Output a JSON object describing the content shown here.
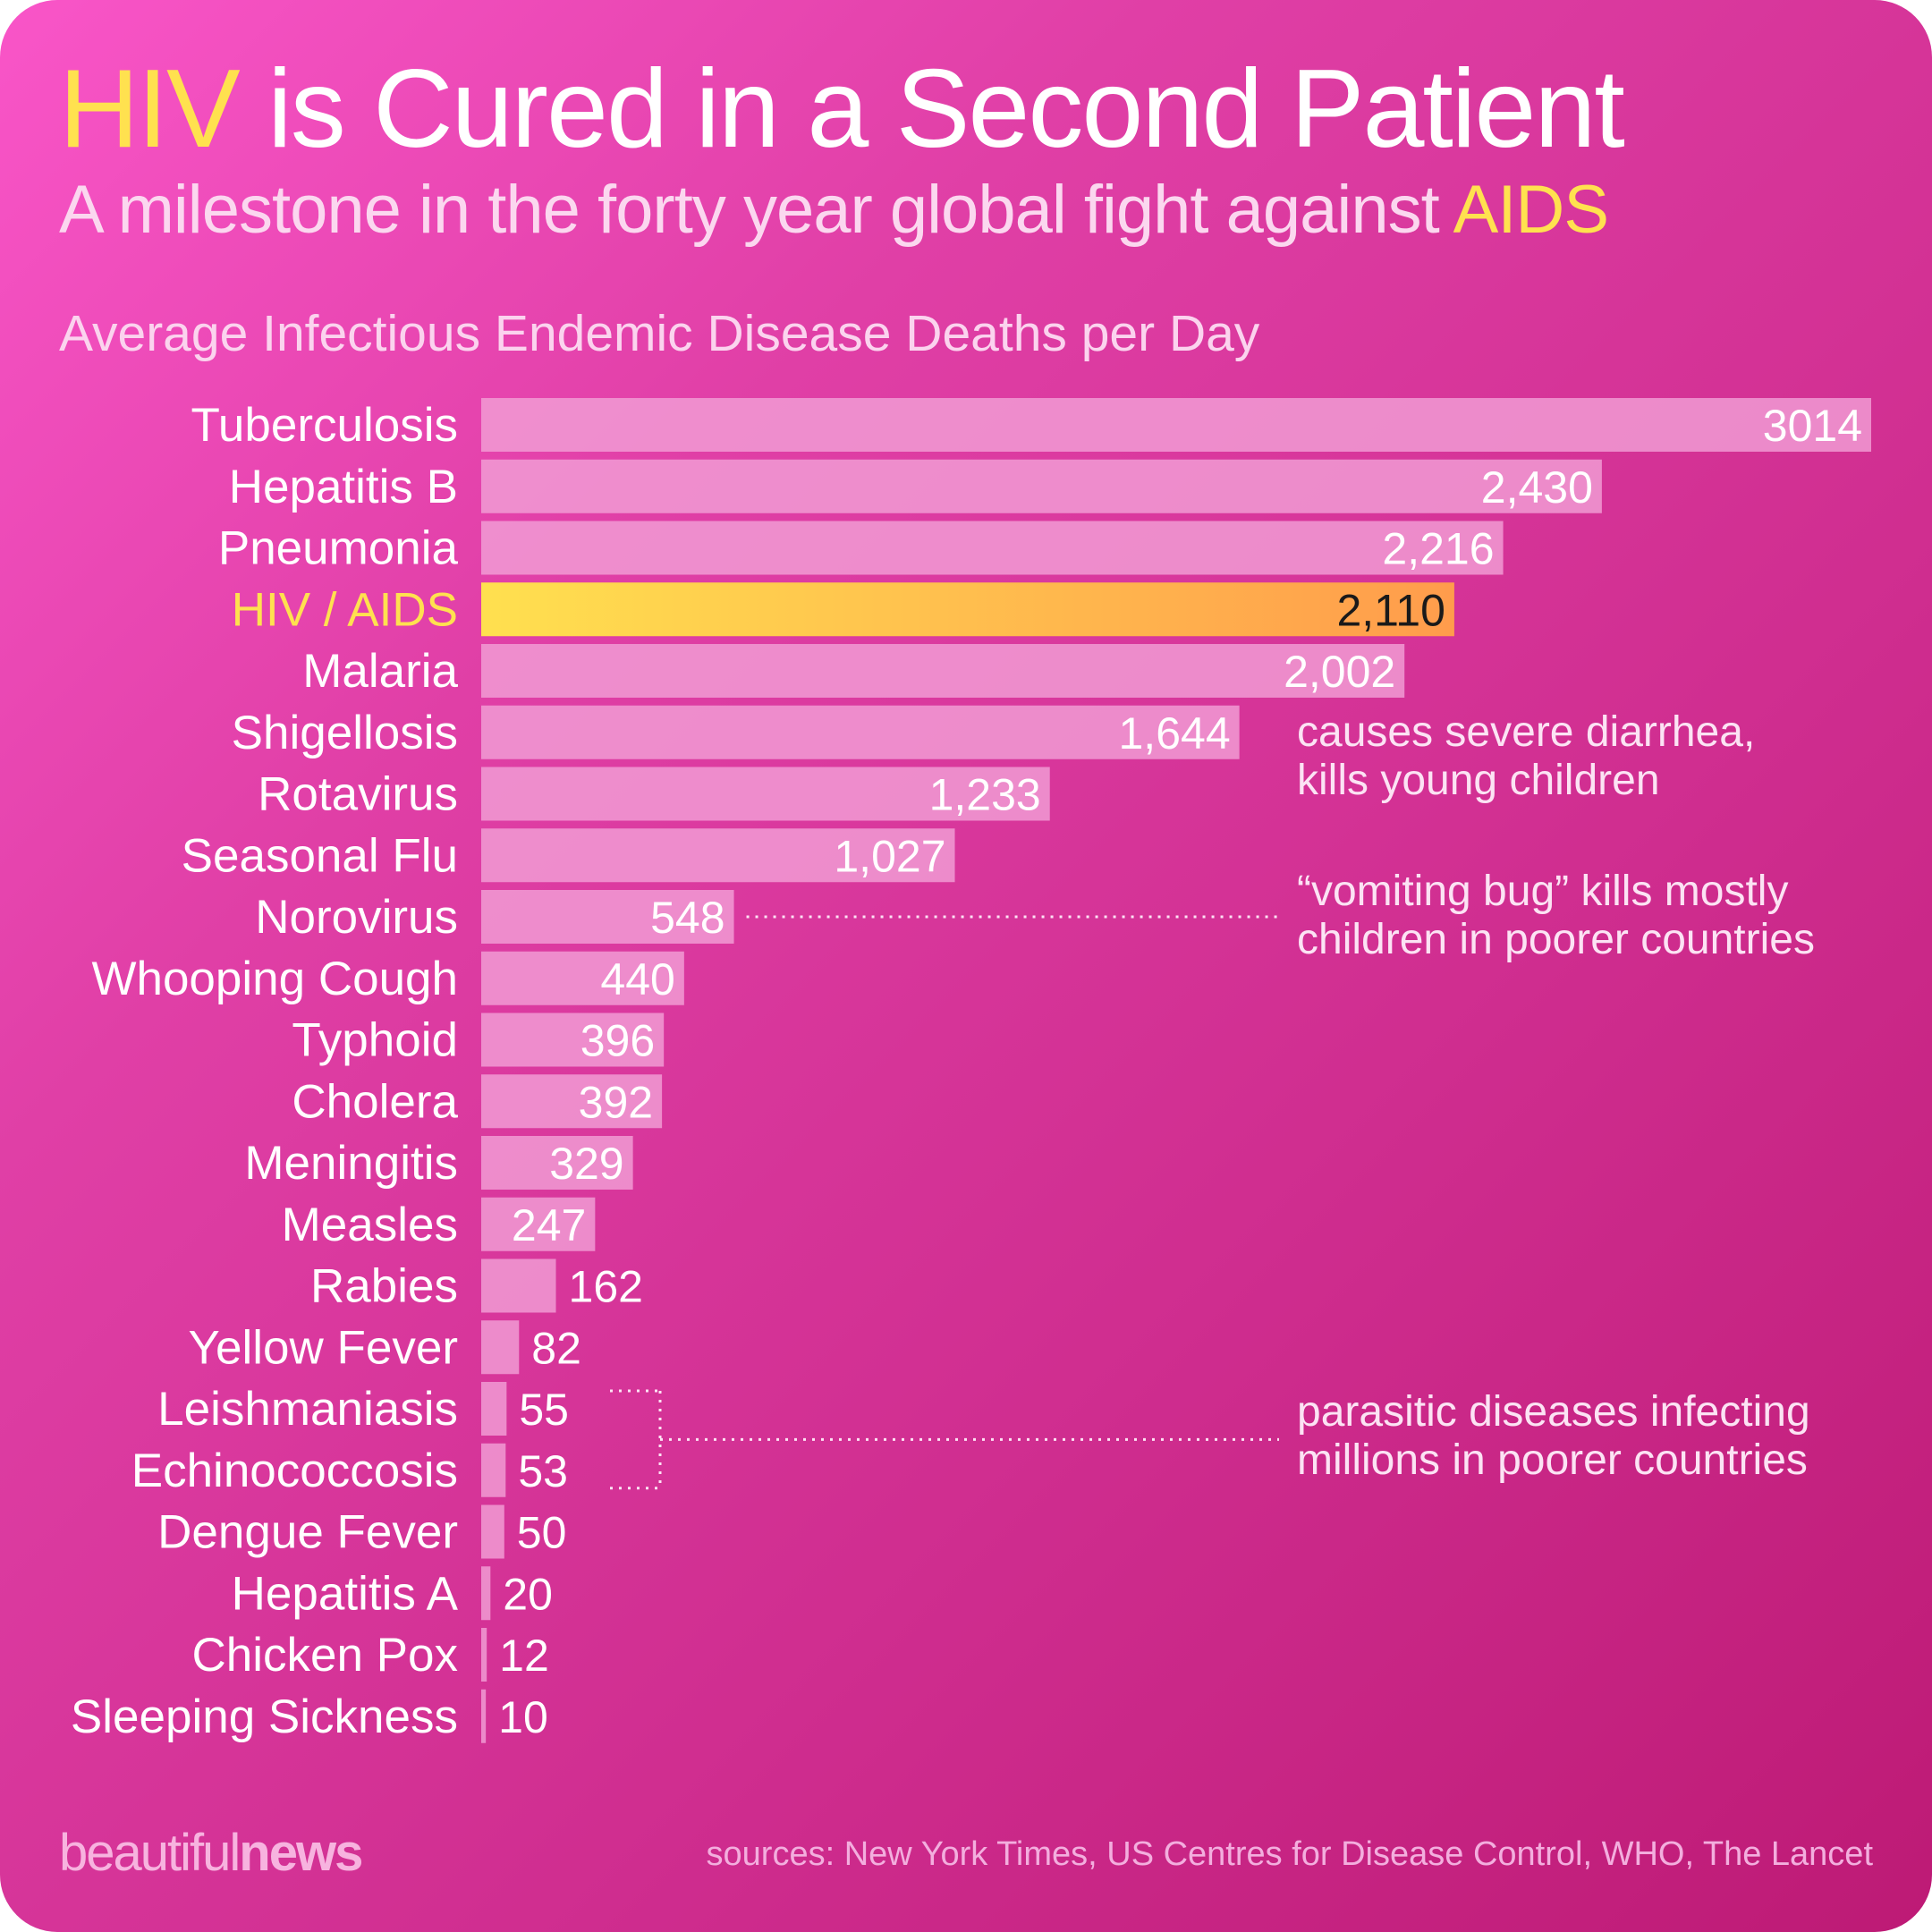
{
  "title": {
    "highlight": "HIV",
    "rest": " is Cured in a Second Patient"
  },
  "subtitle": {
    "text": "A milestone in the forty year global fight against ",
    "highlight": "AIDS"
  },
  "colors": {
    "bar": "#f29fd6",
    "highlight_bar_start": "#ffe04f",
    "highlight_bar_end": "#ff9c4c",
    "highlight_text": "#ffe14f",
    "background_start": "#f955c8",
    "background_end": "#bd1a75"
  },
  "chart_data": {
    "type": "bar",
    "orientation": "horizontal",
    "title": "Average Infectious Endemic Disease Deaths per Day",
    "categories": [
      "Tuberculosis",
      "Hepatitis B",
      "Pneumonia",
      "HIV / AIDS",
      "Malaria",
      "Shigellosis",
      "Rotavirus",
      "Seasonal Flu",
      "Norovirus",
      "Whooping Cough",
      "Typhoid",
      "Cholera",
      "Meningitis",
      "Measles",
      "Rabies",
      "Yellow Fever",
      "Leishmaniasis",
      "Echinococcosis",
      "Dengue Fever",
      "Hepatitis A",
      "Chicken Pox",
      "Sleeping Sickness"
    ],
    "values": [
      3014,
      2430,
      2216,
      2110,
      2002,
      1644,
      1233,
      1027,
      548,
      440,
      396,
      392,
      329,
      247,
      162,
      82,
      55,
      53,
      50,
      20,
      12,
      10
    ],
    "value_labels": [
      "3014",
      "2,430",
      "2,216",
      "2,110",
      "2,002",
      "1,644",
      "1,233",
      "1,027",
      "548",
      "440",
      "396",
      "392",
      "329",
      "247",
      "162",
      "82",
      "55",
      "53",
      "50",
      "20",
      "12",
      "10"
    ],
    "highlight_index": 3,
    "xlim": [
      0,
      3014
    ],
    "xlabel": "",
    "ylabel": "",
    "grid": false,
    "legend": "none",
    "annotations": [
      {
        "lines": [
          "causes severe diarrhea,",
          "kills young children"
        ],
        "target": "Shigellosis"
      },
      {
        "lines": [
          "“vomiting bug” kills mostly",
          "children in poorer countries"
        ],
        "target": "Norovirus"
      },
      {
        "lines": [
          "parasitic diseases infecting",
          "millions in poorer countries"
        ],
        "targets": [
          "Leishmaniasis",
          "Echinococcosis"
        ]
      }
    ]
  },
  "footer": {
    "brand_part1": "beautiful",
    "brand_part2": "news",
    "sources": "sources: New York Times, US Centres for Disease Control, WHO, The Lancet"
  }
}
